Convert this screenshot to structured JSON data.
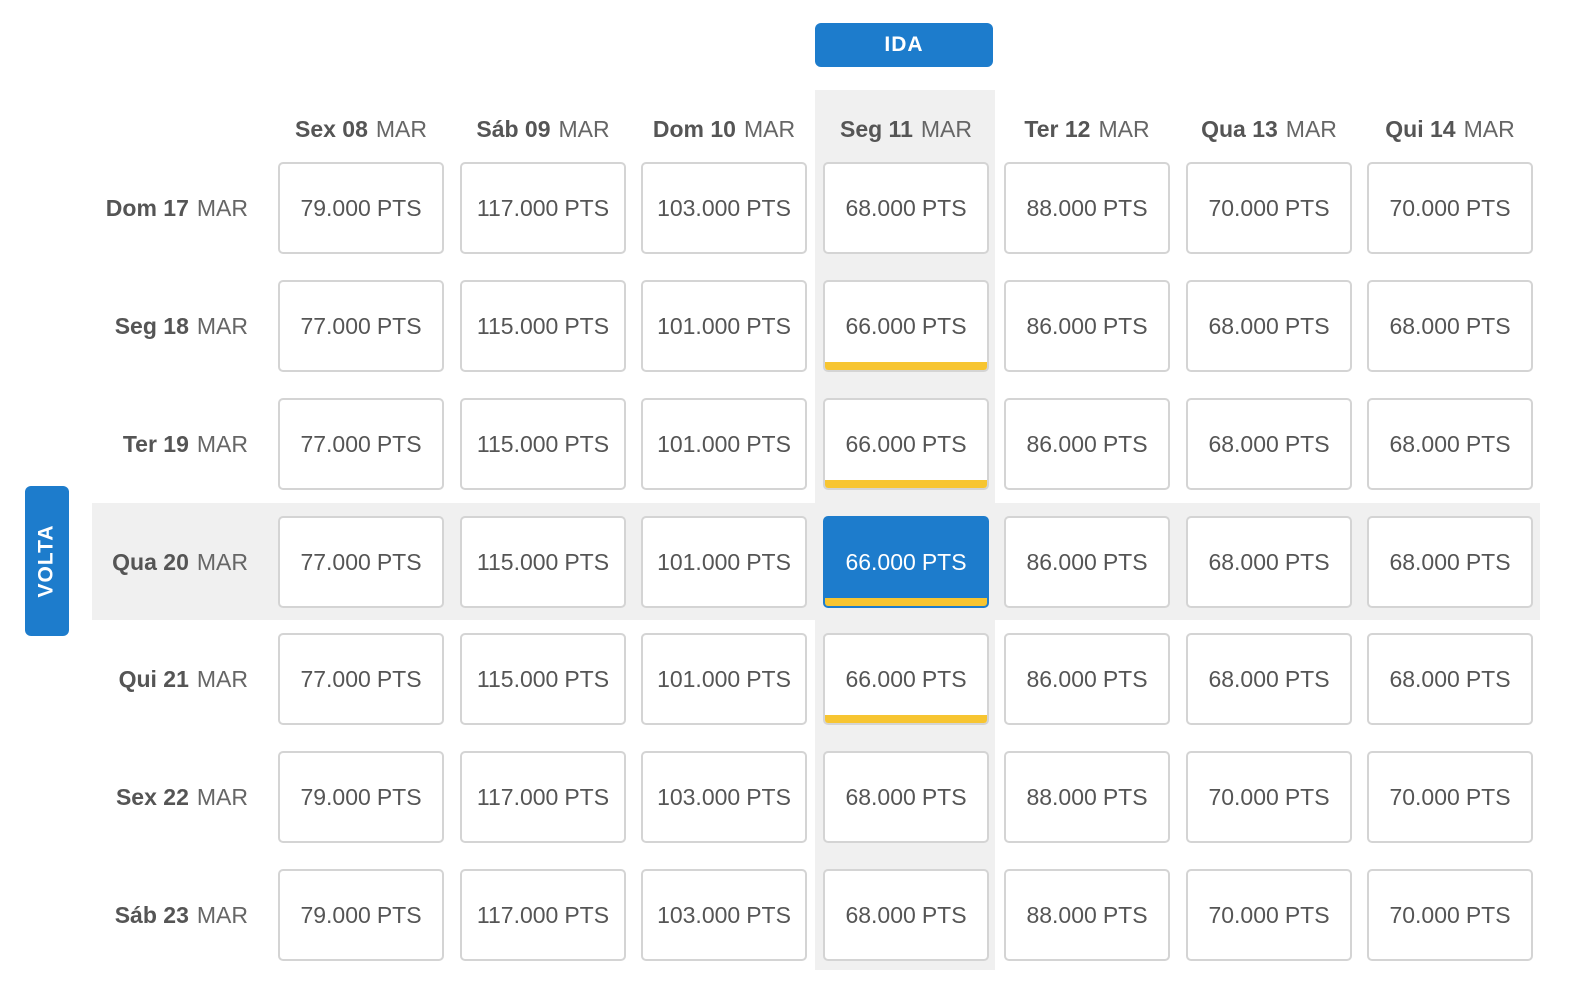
{
  "outbound_label": "IDA",
  "return_label": "VOLTA",
  "accent_color": "#1d7ccc",
  "best_price_marker_color": "#f7c531",
  "unit": "PTS",
  "columns": [
    {
      "day": "Sex 08",
      "month": "MAR"
    },
    {
      "day": "Sáb 09",
      "month": "MAR"
    },
    {
      "day": "Dom 10",
      "month": "MAR"
    },
    {
      "day": "Seg 11",
      "month": "MAR"
    },
    {
      "day": "Ter 12",
      "month": "MAR"
    },
    {
      "day": "Qua 13",
      "month": "MAR"
    },
    {
      "day": "Qui 14",
      "month": "MAR"
    }
  ],
  "rows": [
    {
      "day": "Dom 17",
      "month": "MAR",
      "prices": [
        "79.000",
        "117.000",
        "103.000",
        "68.000",
        "88.000",
        "70.000",
        "70.000"
      ]
    },
    {
      "day": "Seg 18",
      "month": "MAR",
      "prices": [
        "77.000",
        "115.000",
        "101.000",
        "66.000",
        "86.000",
        "68.000",
        "68.000"
      ]
    },
    {
      "day": "Ter 19",
      "month": "MAR",
      "prices": [
        "77.000",
        "115.000",
        "101.000",
        "66.000",
        "86.000",
        "68.000",
        "68.000"
      ]
    },
    {
      "day": "Qua 20",
      "month": "MAR",
      "prices": [
        "77.000",
        "115.000",
        "101.000",
        "66.000",
        "86.000",
        "68.000",
        "68.000"
      ]
    },
    {
      "day": "Qui 21",
      "month": "MAR",
      "prices": [
        "77.000",
        "115.000",
        "101.000",
        "66.000",
        "86.000",
        "68.000",
        "68.000"
      ]
    },
    {
      "day": "Sex 22",
      "month": "MAR",
      "prices": [
        "79.000",
        "117.000",
        "103.000",
        "68.000",
        "88.000",
        "70.000",
        "70.000"
      ]
    },
    {
      "day": "Sáb 23",
      "month": "MAR",
      "prices": [
        "79.000",
        "117.000",
        "103.000",
        "68.000",
        "88.000",
        "70.000",
        "70.000"
      ]
    }
  ],
  "selected": {
    "row": 3,
    "col": 3
  },
  "best_price_cells": [
    [
      1,
      3
    ],
    [
      2,
      3
    ],
    [
      3,
      3
    ],
    [
      4,
      3
    ]
  ]
}
